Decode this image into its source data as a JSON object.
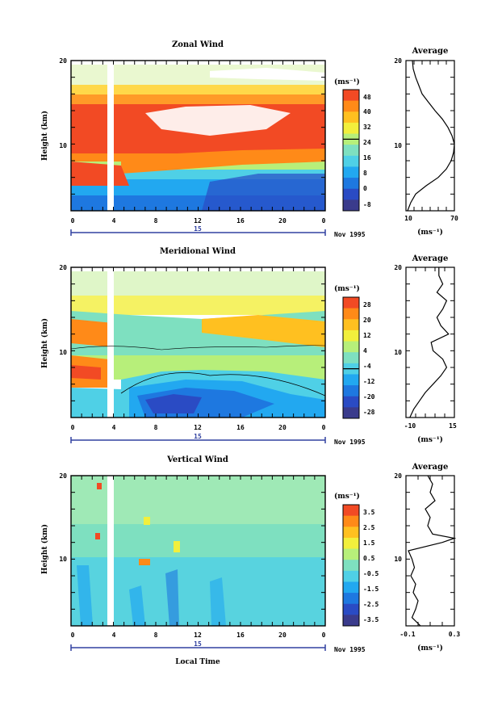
{
  "colorbar_colors": [
    "#3a3b8c",
    "#2a4bc4",
    "#1e78e0",
    "#22a8f0",
    "#4fd0e6",
    "#7ee0c0",
    "#b7ef7a",
    "#f2ef3c",
    "#ffc020",
    "#ff8a18",
    "#f24a24"
  ],
  "chart_data": [
    {
      "type": "heatmap",
      "title": "Zonal Wind",
      "ylabel": "Height (km)",
      "unit": "(ms⁻¹)",
      "date_label": "Nov 1995",
      "day_label": "15",
      "xlim": [
        0,
        24
      ],
      "ylim": [
        2,
        20
      ],
      "x_ticks": [
        "0",
        "4",
        "8",
        "12",
        "16",
        "20",
        "0"
      ],
      "y_ticks": [
        "10",
        "20"
      ],
      "colorbar_ticks": [
        "48",
        "40",
        "32",
        "24",
        "16",
        "8",
        "0",
        "-8"
      ],
      "average_title": "Average",
      "average_unit": "(ms⁻¹)",
      "average_xticks": [
        "10",
        "70"
      ],
      "average_yticks": [
        "10",
        "20"
      ],
      "average_xlim": [
        10,
        70
      ],
      "average_profile": {
        "height": [
          2,
          3,
          4,
          5,
          6,
          7,
          8,
          9,
          10,
          11,
          12,
          13,
          14,
          15,
          16,
          17,
          18,
          19,
          20
        ],
        "value": [
          12,
          16,
          22,
          35,
          50,
          60,
          66,
          69,
          70,
          67,
          62,
          55,
          46,
          38,
          30,
          26,
          22,
          19,
          18
        ]
      }
    },
    {
      "type": "heatmap",
      "title": "Meridional Wind",
      "ylabel": "Height (km)",
      "unit": "(ms⁻¹)",
      "date_label": "Nov 1995",
      "day_label": "15",
      "xlim": [
        0,
        24
      ],
      "ylim": [
        2,
        20
      ],
      "x_ticks": [
        "0",
        "4",
        "8",
        "12",
        "16",
        "20",
        "0"
      ],
      "y_ticks": [
        "10",
        "20"
      ],
      "colorbar_ticks": [
        "28",
        "20",
        "12",
        "4",
        "-4",
        "-12",
        "-20",
        "-28"
      ],
      "average_title": "Average",
      "average_unit": "(ms⁻¹)",
      "average_xticks": [
        "-10",
        "15"
      ],
      "average_yticks": [
        "10",
        "20"
      ],
      "average_xlim": [
        -10,
        15
      ],
      "average_profile": {
        "height": [
          2,
          3,
          4,
          5,
          6,
          7,
          8,
          9,
          10,
          11,
          12,
          13,
          14,
          15,
          16,
          17,
          18,
          19,
          20
        ],
        "value": [
          -8,
          -6,
          -3,
          0,
          4,
          8,
          11,
          9,
          4,
          3,
          12,
          8,
          6,
          9,
          11,
          6,
          9,
          7,
          7
        ]
      }
    },
    {
      "type": "heatmap",
      "title": "Vertical Wind",
      "ylabel": "Height (km)",
      "xlabel": "Local Time",
      "unit": "(ms⁻¹)",
      "date_label": "Nov 1995",
      "day_label": "15",
      "xlim": [
        0,
        24
      ],
      "ylim": [
        2,
        20
      ],
      "x_ticks": [
        "0",
        "4",
        "8",
        "12",
        "16",
        "20",
        "0"
      ],
      "y_ticks": [
        "10",
        "20"
      ],
      "colorbar_ticks": [
        "3.5",
        "2.5",
        "1.5",
        "0.5",
        "-0.5",
        "-1.5",
        "-2.5",
        "-3.5"
      ],
      "average_title": "Average",
      "average_unit": "(ms⁻¹)",
      "average_xticks": [
        "-0.1",
        "0.3"
      ],
      "average_yticks": [
        "10",
        "20"
      ],
      "average_xlim": [
        -0.1,
        0.3
      ],
      "average_profile": {
        "height": [
          2,
          3,
          4,
          5,
          6,
          7,
          8,
          9,
          10,
          11,
          12,
          12.5,
          13,
          14,
          15,
          16,
          17,
          18,
          19,
          20
        ],
        "value": [
          0.02,
          -0.05,
          -0.02,
          0.0,
          -0.04,
          -0.02,
          -0.06,
          -0.03,
          -0.05,
          -0.08,
          0.2,
          0.3,
          0.12,
          0.08,
          0.1,
          0.06,
          0.14,
          0.1,
          0.12,
          0.08
        ]
      }
    }
  ]
}
